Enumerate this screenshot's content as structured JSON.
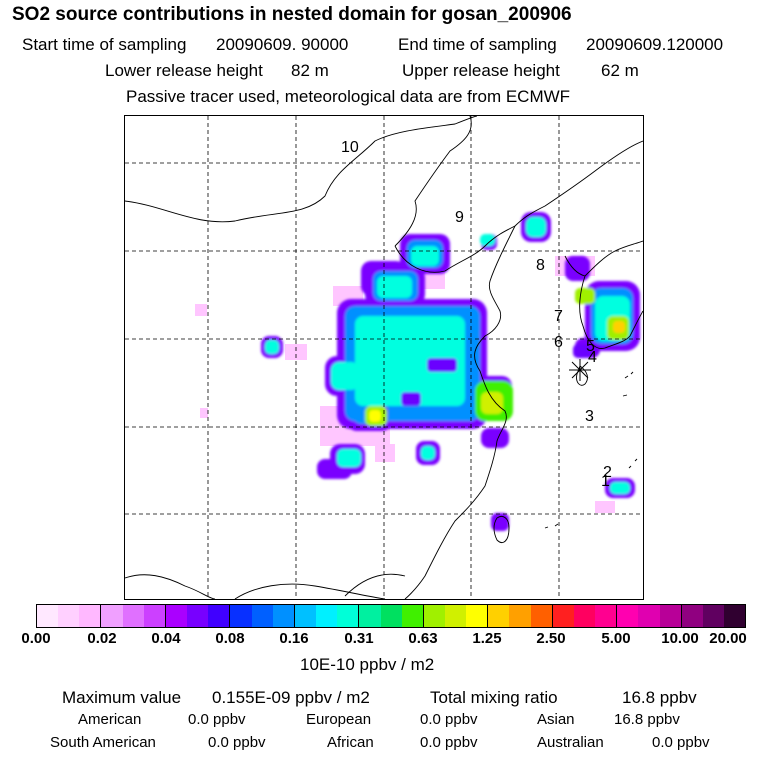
{
  "header": {
    "title": "SO2 source contributions in nested domain for gosan_200906",
    "start_label": "Start time of sampling",
    "start_value": "20090609. 90000",
    "end_label": "End time of sampling",
    "end_value": "20090609.120000",
    "lower_label": "Lower release height",
    "lower_value": "82 m",
    "upper_label": "Upper release height",
    "upper_value": "62 m",
    "tracer_note": "Passive tracer used, meteorological data are from ECMWF"
  },
  "map": {
    "track_labels": [
      "10",
      "9",
      "8",
      "7",
      "6",
      "5",
      "4",
      "3",
      "2",
      "1"
    ],
    "receptor_marker": "asterisk-icon",
    "grid": "dashed"
  },
  "colorbar": {
    "colors": [
      "#ffe8ff",
      "#ffd0ff",
      "#ffb8ff",
      "#f0a0ff",
      "#e070ff",
      "#cc40ff",
      "#aa00ff",
      "#7800ff",
      "#4000ff",
      "#0830ff",
      "#0060ff",
      "#0090ff",
      "#00c0ff",
      "#00f0ff",
      "#00ffd8",
      "#00f0a0",
      "#00e060",
      "#40f000",
      "#a0f000",
      "#d0f000",
      "#ffff00",
      "#ffd000",
      "#ffa000",
      "#ff6000",
      "#ff2020",
      "#ff0060",
      "#ff0090",
      "#ff00b0",
      "#e000b0",
      "#b80098",
      "#900080",
      "#600060",
      "#300030"
    ],
    "tick_labels": [
      "0.00",
      "0.02",
      "0.04",
      "0.08",
      "0.16",
      "0.31",
      "0.63",
      "1.25",
      "2.50",
      "5.00",
      "10.00",
      "20.00"
    ],
    "units": "10E-10 ppbv / m2"
  },
  "summary": {
    "max_label": "Maximum value",
    "max_value": "0.155E-09 ppbv / m2",
    "total_label": "Total mixing ratio",
    "total_value": "16.8 ppbv",
    "regions": [
      {
        "name": "American",
        "value": "0.0 ppbv"
      },
      {
        "name": "European",
        "value": "0.0 ppbv"
      },
      {
        "name": "Asian",
        "value": "16.8 ppbv"
      },
      {
        "name": "South American",
        "value": "0.0 ppbv"
      },
      {
        "name": "African",
        "value": "0.0 ppbv"
      },
      {
        "name": "Australian",
        "value": "0.0 ppbv"
      }
    ]
  }
}
